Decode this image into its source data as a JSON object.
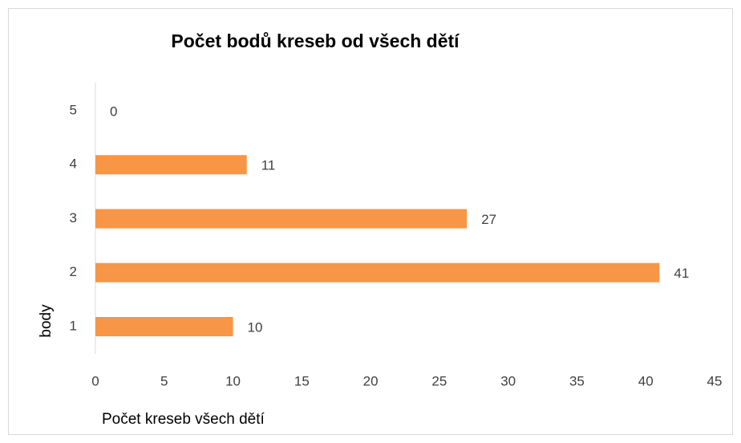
{
  "chart_data": {
    "type": "bar",
    "orientation": "horizontal",
    "title": "Počet bodů kreseb od všech dětí",
    "x_label": "Počet kreseb všech dětí",
    "y_label": "body",
    "categories": [
      "1",
      "2",
      "3",
      "4",
      "5"
    ],
    "values": [
      10,
      41,
      27,
      11,
      0
    ],
    "color": "#f79646",
    "xlim": [
      0,
      45
    ],
    "xticks": [
      0,
      5,
      10,
      15,
      20,
      25,
      30,
      35,
      40,
      45
    ],
    "grid": false
  }
}
